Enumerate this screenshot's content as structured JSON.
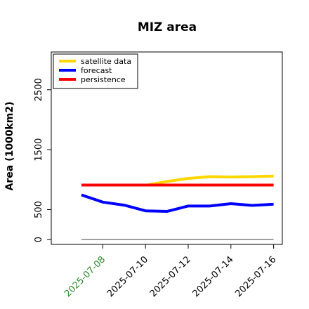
{
  "chart_data": {
    "type": "line",
    "title": "MIZ area",
    "xlabel": "",
    "ylabel": "Area (1000km2)",
    "x": [
      "2025-07-07",
      "2025-07-08",
      "2025-07-09",
      "2025-07-10",
      "2025-07-11",
      "2025-07-12",
      "2025-07-13",
      "2025-07-14",
      "2025-07-15",
      "2025-07-16"
    ],
    "xticks": [
      "2025-07-08",
      "2025-07-10",
      "2025-07-12",
      "2025-07-14",
      "2025-07-16"
    ],
    "xtick_colors": [
      "#2e8b2e",
      "#000000",
      "#000000",
      "#000000",
      "#000000"
    ],
    "yticks": [
      0,
      500,
      1500,
      2500
    ],
    "ylim": [
      -80,
      3130
    ],
    "grid": false,
    "legend_position": "top-left",
    "series": [
      {
        "name": "satellite data",
        "color": "#ffd700",
        "values": [
          null,
          null,
          null,
          905,
          970,
          1020,
          1050,
          1045,
          1050,
          1060
        ]
      },
      {
        "name": "forecast",
        "color": "#0000ff",
        "values": [
          745,
          625,
          575,
          480,
          470,
          560,
          560,
          600,
          570,
          590
        ]
      },
      {
        "name": "persistence",
        "color": "#ff0000",
        "values": [
          910,
          910,
          910,
          910,
          910,
          910,
          910,
          910,
          910,
          910
        ]
      }
    ],
    "reference_line": {
      "color": "#808080",
      "value": 0
    }
  }
}
